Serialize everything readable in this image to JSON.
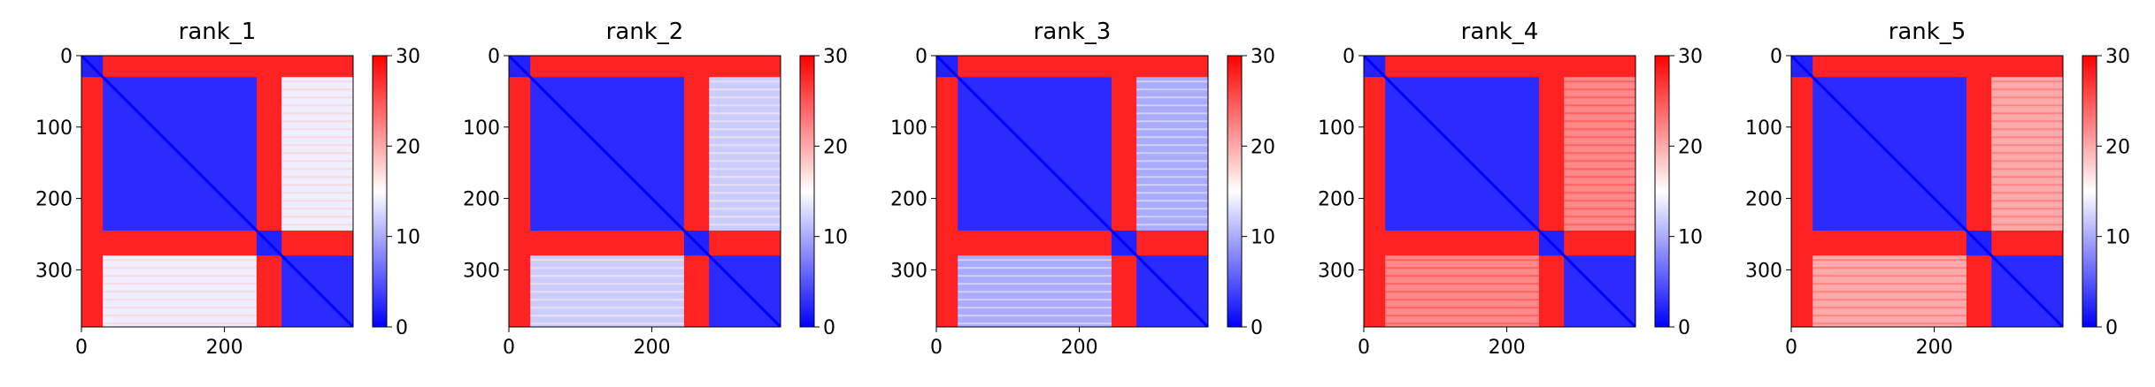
{
  "figure": {
    "background": "#ffffff"
  },
  "colormap": {
    "name": "bwr",
    "low": "#0000ff",
    "mid": "#ffffff",
    "high": "#ff0000"
  },
  "chart_data": [
    {
      "type": "heatmap",
      "title": "rank_1",
      "size": 380,
      "xlim": [
        0,
        380
      ],
      "ylim": [
        380,
        0
      ],
      "xticks": [
        0,
        200
      ],
      "yticks": [
        0,
        100,
        200,
        300
      ],
      "colorbar": {
        "ticks": [
          0,
          10,
          20,
          30
        ],
        "range": [
          0,
          30
        ]
      },
      "segments": [
        [
          0,
          30
        ],
        [
          30,
          245
        ],
        [
          245,
          280
        ],
        [
          280,
          380
        ]
      ],
      "block_values": [
        [
          2,
          28,
          28,
          28
        ],
        [
          28,
          2.5,
          28,
          14
        ],
        [
          28,
          28,
          2,
          28
        ],
        [
          28,
          14,
          28,
          2.5
        ]
      ]
    },
    {
      "type": "heatmap",
      "title": "rank_2",
      "size": 380,
      "xlim": [
        0,
        380
      ],
      "ylim": [
        380,
        0
      ],
      "xticks": [
        0,
        200
      ],
      "yticks": [
        0,
        100,
        200,
        300
      ],
      "colorbar": {
        "ticks": [
          0,
          10,
          20,
          30
        ],
        "range": [
          0,
          30
        ]
      },
      "segments": [
        [
          0,
          30
        ],
        [
          30,
          245
        ],
        [
          245,
          280
        ],
        [
          280,
          380
        ]
      ],
      "block_values": [
        [
          2,
          28,
          28,
          28
        ],
        [
          28,
          2.5,
          28,
          12
        ],
        [
          28,
          28,
          2,
          28
        ],
        [
          28,
          12,
          28,
          2.5
        ]
      ]
    },
    {
      "type": "heatmap",
      "title": "rank_3",
      "size": 380,
      "xlim": [
        0,
        380
      ],
      "ylim": [
        380,
        0
      ],
      "xticks": [
        0,
        200
      ],
      "yticks": [
        0,
        100,
        200,
        300
      ],
      "colorbar": {
        "ticks": [
          0,
          10,
          20,
          30
        ],
        "range": [
          0,
          30
        ]
      },
      "segments": [
        [
          0,
          30
        ],
        [
          30,
          245
        ],
        [
          245,
          280
        ],
        [
          280,
          380
        ]
      ],
      "block_values": [
        [
          2,
          28,
          28,
          28
        ],
        [
          28,
          2.5,
          28,
          10
        ],
        [
          28,
          28,
          2,
          28
        ],
        [
          28,
          10,
          28,
          2.5
        ]
      ]
    },
    {
      "type": "heatmap",
      "title": "rank_4",
      "size": 380,
      "xlim": [
        0,
        380
      ],
      "ylim": [
        380,
        0
      ],
      "xticks": [
        0,
        200
      ],
      "yticks": [
        0,
        100,
        200,
        300
      ],
      "colorbar": {
        "ticks": [
          0,
          10,
          20,
          30
        ],
        "range": [
          0,
          30
        ]
      },
      "segments": [
        [
          0,
          30
        ],
        [
          30,
          245
        ],
        [
          245,
          280
        ],
        [
          280,
          380
        ]
      ],
      "block_values": [
        [
          2,
          28,
          28,
          28
        ],
        [
          28,
          2.5,
          28,
          22
        ],
        [
          28,
          28,
          2,
          28
        ],
        [
          28,
          22,
          28,
          2.5
        ]
      ]
    },
    {
      "type": "heatmap",
      "title": "rank_5",
      "size": 380,
      "xlim": [
        0,
        380
      ],
      "ylim": [
        380,
        0
      ],
      "xticks": [
        0,
        200
      ],
      "yticks": [
        0,
        100,
        200,
        300
      ],
      "colorbar": {
        "ticks": [
          0,
          10,
          20,
          30
        ],
        "range": [
          0,
          30
        ]
      },
      "segments": [
        [
          0,
          30
        ],
        [
          30,
          245
        ],
        [
          245,
          280
        ],
        [
          280,
          380
        ]
      ],
      "block_values": [
        [
          2,
          28,
          28,
          28
        ],
        [
          28,
          2.5,
          28,
          20
        ],
        [
          28,
          28,
          2,
          28
        ],
        [
          28,
          20,
          28,
          2.5
        ]
      ]
    }
  ]
}
